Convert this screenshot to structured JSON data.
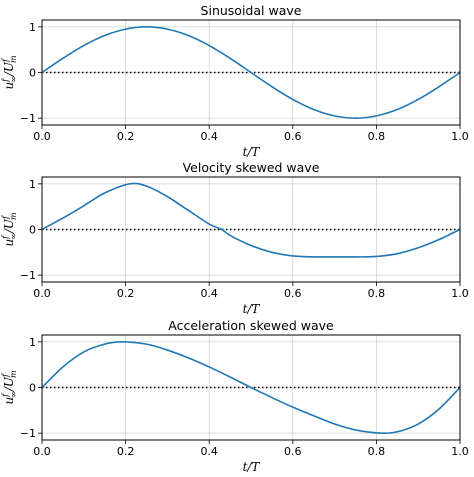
{
  "chart_data": [
    {
      "type": "line",
      "title": "Sinusoidal wave",
      "xlabel": "t/T",
      "ylabel": "u∞f/Umf",
      "xlim": [
        0.0,
        1.0
      ],
      "ylim": [
        -1.15,
        1.15
      ],
      "xticks": [
        "0.0",
        "0.2",
        "0.4",
        "0.6",
        "0.8",
        "1.0"
      ],
      "yticks": [
        "−1",
        "0",
        "1"
      ],
      "grid": true,
      "zero_line": "dotted",
      "series": [
        {
          "x": [
            0.0,
            0.05,
            0.1,
            0.15,
            0.2,
            0.25,
            0.3,
            0.35,
            0.4,
            0.45,
            0.5,
            0.55,
            0.6,
            0.65,
            0.7,
            0.75,
            0.8,
            0.85,
            0.9,
            0.95,
            1.0
          ],
          "y": [
            0.0,
            0.31,
            0.59,
            0.81,
            0.95,
            1.0,
            0.95,
            0.81,
            0.59,
            0.31,
            0.0,
            -0.31,
            -0.59,
            -0.81,
            -0.95,
            -1.0,
            -0.95,
            -0.81,
            -0.59,
            -0.31,
            0.0
          ]
        }
      ]
    },
    {
      "type": "line",
      "title": "Velocity skewed wave",
      "xlabel": "t/T",
      "ylabel": "u∞f/Umf",
      "xlim": [
        0.0,
        1.0
      ],
      "ylim": [
        -1.15,
        1.15
      ],
      "xticks": [
        "0.0",
        "0.2",
        "0.4",
        "0.6",
        "0.8",
        "1.0"
      ],
      "yticks": [
        "−1",
        "0",
        "1"
      ],
      "grid": true,
      "zero_line": "dotted",
      "series": [
        {
          "x": [
            0.0,
            0.05,
            0.1,
            0.15,
            0.21,
            0.25,
            0.3,
            0.35,
            0.4,
            0.43,
            0.45,
            0.5,
            0.55,
            0.6,
            0.65,
            0.7,
            0.75,
            0.8,
            0.85,
            0.9,
            0.95,
            1.0
          ],
          "y": [
            0.0,
            0.25,
            0.52,
            0.8,
            1.0,
            0.95,
            0.72,
            0.42,
            0.12,
            0.0,
            -0.13,
            -0.35,
            -0.5,
            -0.58,
            -0.6,
            -0.6,
            -0.6,
            -0.59,
            -0.53,
            -0.4,
            -0.22,
            0.0
          ]
        }
      ]
    },
    {
      "type": "line",
      "title": "Acceleration skewed wave",
      "xlabel": "t/T",
      "ylabel": "u∞f/Umf",
      "xlim": [
        0.0,
        1.0
      ],
      "ylim": [
        -1.15,
        1.15
      ],
      "xticks": [
        "0.0",
        "0.2",
        "0.4",
        "0.6",
        "0.8",
        "1.0"
      ],
      "yticks": [
        "−1",
        "0",
        "1"
      ],
      "grid": true,
      "zero_line": "dotted",
      "series": [
        {
          "x": [
            0.0,
            0.05,
            0.1,
            0.15,
            0.19,
            0.25,
            0.3,
            0.35,
            0.4,
            0.45,
            0.5,
            0.55,
            0.6,
            0.65,
            0.7,
            0.75,
            0.81,
            0.85,
            0.9,
            0.95,
            1.0
          ],
          "y": [
            0.0,
            0.45,
            0.78,
            0.95,
            1.0,
            0.95,
            0.82,
            0.65,
            0.45,
            0.23,
            0.0,
            -0.22,
            -0.43,
            -0.62,
            -0.8,
            -0.93,
            -1.0,
            -0.97,
            -0.8,
            -0.47,
            0.0
          ]
        }
      ]
    }
  ]
}
